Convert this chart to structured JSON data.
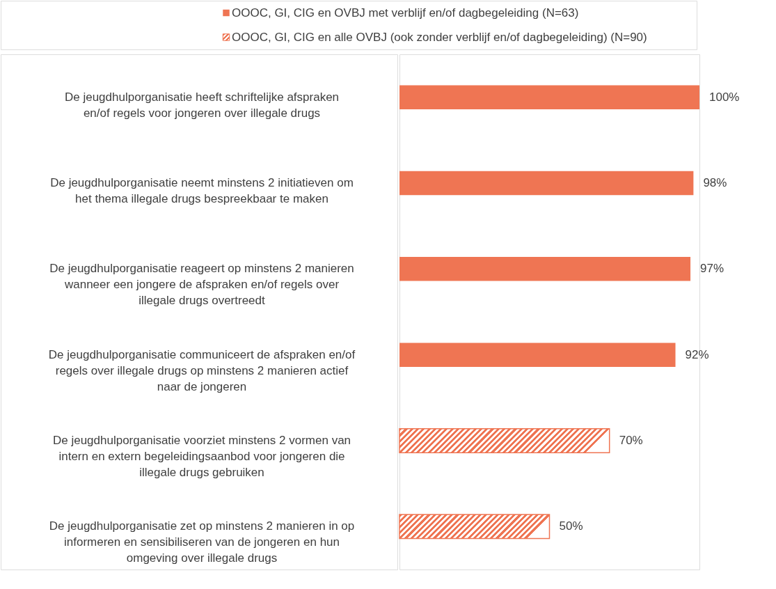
{
  "chart_data": {
    "type": "bar",
    "orientation": "horizontal",
    "categories": [
      "De jeugdhulporganisatie heeft schriftelijke afspraken en/of regels voor jongeren over illegale drugs",
      "De jeugdhulporganisatie neemt minstens 2 initiatieven om het thema illegale drugs bespreekbaar te maken",
      "De jeugdhulporganisatie reageert op minstens 2 manieren wanneer een jongere de afspraken en/of regels over illegale drugs overtreedt",
      "De jeugdhulporganisatie communiceert de afspraken en/of regels over illegale drugs op minstens 2 manieren actief naar de jongeren",
      "De jeugdhulporganisatie voorziet minstens 2 vormen van intern en extern begeleidingsaanbod voor jongeren die illegale drugs gebruiken",
      "De jeugdhulporganisatie zet op minstens 2 manieren in op informeren en sensibiliseren van de jongeren en hun omgeving over illegale drugs"
    ],
    "series": [
      {
        "name": "OOOC, GI, CIG en OVBJ met verblijf en/of dagbegeleiding (N=63)",
        "color": "#ef7553",
        "values": [
          100,
          98,
          97,
          92,
          null,
          null
        ],
        "value_labels": [
          "100%",
          "98%",
          "97%",
          "92%",
          null,
          null
        ]
      },
      {
        "name": "OOOC, GI, CIG en alle OVBJ (ook zonder verblijf en/of dagbegeleiding) (N=90)",
        "color": "#ef7553",
        "values": [
          null,
          null,
          null,
          null,
          70,
          50
        ],
        "value_labels": [
          null,
          null,
          null,
          null,
          "70%",
          "50%"
        ]
      }
    ],
    "xlim": [
      0,
      100
    ],
    "legend": "top"
  }
}
